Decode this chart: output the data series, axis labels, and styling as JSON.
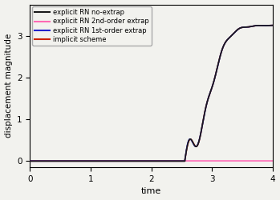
{
  "title": "",
  "xlabel": "time",
  "ylabel": "displacement magnitude",
  "xlim": [
    0,
    4
  ],
  "ylim": [
    -0.15,
    3.75
  ],
  "yticks": [
    0,
    1,
    2,
    3
  ],
  "xticks": [
    0,
    1,
    2,
    3,
    4
  ],
  "legend_labels": [
    "implicit scheme",
    "explicit RN no-extrap",
    "explicit RN 1st-order extrap",
    "explicit RN 2nd-order extrap"
  ],
  "colors": [
    "#1a1a1a",
    "#ff69b4",
    "#2222cc",
    "#cc2200"
  ],
  "linewidths": [
    1.2,
    1.2,
    1.2,
    1.2
  ],
  "background_color": "#f2f2ee",
  "grid": false
}
